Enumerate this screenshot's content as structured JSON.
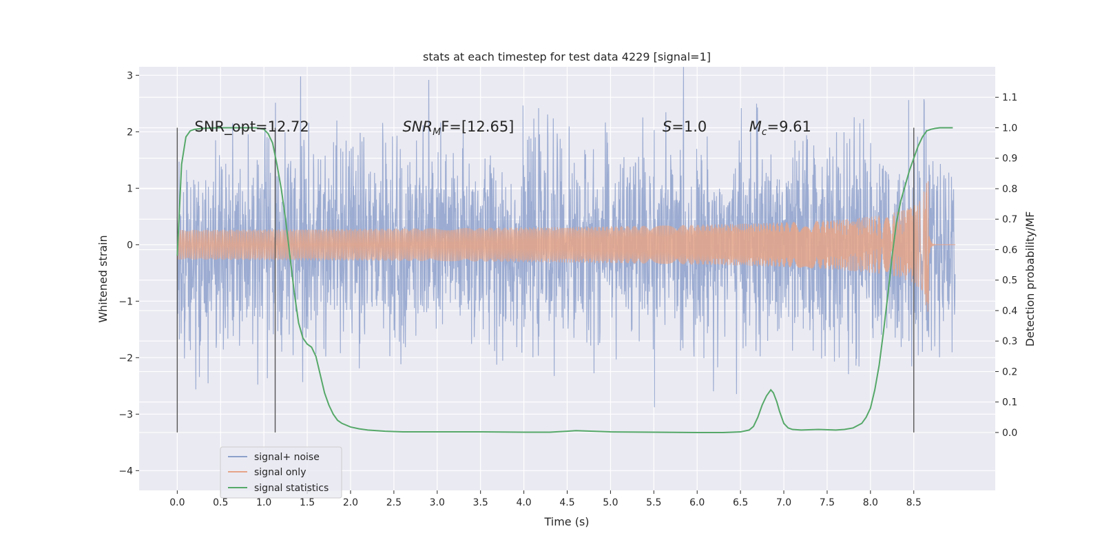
{
  "chart_data": {
    "type": "line",
    "title": "stats at each timestep for test data 4229 [signal=1]",
    "xlabel": "Time (s)",
    "ylabel": "Whitened strain",
    "ylabel_right": "Detection probability/MF",
    "xlim": [
      -0.44,
      9.44
    ],
    "ylim": [
      -4.35,
      3.15
    ],
    "ylim_right": [
      -0.19,
      1.2
    ],
    "x_ticks": [
      0.0,
      0.5,
      1.0,
      1.5,
      2.0,
      2.5,
      3.0,
      3.5,
      4.0,
      4.5,
      5.0,
      5.5,
      6.0,
      6.5,
      7.0,
      7.5,
      8.0,
      8.5
    ],
    "x_tick_labels": [
      "0.0",
      "0.5",
      "1.0",
      "1.5",
      "2.0",
      "2.5",
      "3.0",
      "3.5",
      "4.0",
      "4.5",
      "5.0",
      "5.5",
      "6.0",
      "6.5",
      "7.0",
      "7.5",
      "8.0",
      "8.5"
    ],
    "y_ticks": [
      -4,
      -3,
      -2,
      -1,
      0,
      1,
      2,
      3
    ],
    "y_tick_labels": [
      "−4",
      "−3",
      "−2",
      "−1",
      "0",
      "1",
      "2",
      "3"
    ],
    "y_right_ticks": [
      0.0,
      0.1,
      0.2,
      0.3,
      0.4,
      0.5,
      0.6,
      0.7,
      0.8,
      0.9,
      1.0,
      1.1
    ],
    "y_right_tick_labels": [
      "0.0",
      "0.1",
      "0.2",
      "0.3",
      "0.4",
      "0.5",
      "0.6",
      "0.7",
      "0.8",
      "0.9",
      "1.0",
      "1.1"
    ],
    "grid": true,
    "legend_position": "lower-left",
    "series": [
      {
        "name": "signal+ noise",
        "axis": "left",
        "color": "#8da0cb",
        "description_values": {
          "t_start": 0.0,
          "t_end": 8.98,
          "approx_sigma": 0.85
        }
      },
      {
        "name": "signal only",
        "axis": "left",
        "color": "#e5a488",
        "peak_time": 8.67,
        "peak_amplitude": 1.2
      },
      {
        "name": "signal statistics",
        "axis": "right",
        "color": "#55a868",
        "x": [
          0.0,
          0.05,
          0.1,
          0.15,
          0.2,
          0.3,
          0.4,
          0.5,
          0.6,
          0.7,
          0.8,
          0.9,
          1.0,
          1.05,
          1.1,
          1.15,
          1.2,
          1.25,
          1.3,
          1.35,
          1.4,
          1.45,
          1.5,
          1.55,
          1.6,
          1.65,
          1.7,
          1.75,
          1.8,
          1.85,
          1.9,
          2.0,
          2.1,
          2.2,
          2.4,
          2.6,
          3.0,
          3.5,
          4.0,
          4.3,
          4.5,
          4.6,
          5.0,
          5.5,
          6.0,
          6.3,
          6.5,
          6.6,
          6.65,
          6.7,
          6.75,
          6.8,
          6.85,
          6.88,
          6.92,
          6.95,
          7.0,
          7.05,
          7.1,
          7.2,
          7.4,
          7.6,
          7.7,
          7.8,
          7.9,
          7.95,
          8.0,
          8.05,
          8.1,
          8.15,
          8.2,
          8.25,
          8.3,
          8.35,
          8.4,
          8.45,
          8.5,
          8.55,
          8.6,
          8.65,
          8.7,
          8.75,
          8.8,
          8.85,
          8.9,
          8.95
        ],
        "y": [
          0.58,
          0.88,
          0.97,
          0.99,
          0.995,
          0.998,
          0.999,
          1.0,
          1.0,
          1.0,
          1.0,
          1.0,
          0.995,
          0.98,
          0.95,
          0.88,
          0.8,
          0.7,
          0.58,
          0.46,
          0.36,
          0.31,
          0.29,
          0.28,
          0.25,
          0.19,
          0.13,
          0.09,
          0.06,
          0.04,
          0.03,
          0.018,
          0.012,
          0.008,
          0.004,
          0.002,
          0.002,
          0.002,
          0.001,
          0.001,
          0.004,
          0.006,
          0.002,
          0.001,
          0.0,
          0.0,
          0.002,
          0.008,
          0.02,
          0.05,
          0.09,
          0.12,
          0.14,
          0.13,
          0.1,
          0.07,
          0.03,
          0.015,
          0.01,
          0.008,
          0.01,
          0.008,
          0.01,
          0.015,
          0.03,
          0.05,
          0.08,
          0.14,
          0.22,
          0.33,
          0.45,
          0.58,
          0.69,
          0.76,
          0.81,
          0.86,
          0.9,
          0.94,
          0.97,
          0.99,
          0.995,
          0.998,
          1.0,
          1.0,
          1.0,
          1.0
        ]
      }
    ],
    "vertical_markers": {
      "x": [
        0.0,
        1.13,
        8.5
      ],
      "y_range_right": [
        0.0,
        1.0
      ],
      "color": "#555555"
    },
    "annotations": [
      {
        "text": "SNR_opt=12.72",
        "x": 0.2,
        "y": 2.1
      },
      {
        "main": "SNR",
        "sub": "M",
        "tail": "F=[12.65]",
        "x": 2.6,
        "y": 2.1
      },
      {
        "main": "S",
        "tail": "=1.0",
        "x": 5.6,
        "y": 2.1
      },
      {
        "main": "M",
        "sub": "c",
        "tail": "=9.61",
        "x": 6.6,
        "y": 2.1
      }
    ]
  }
}
